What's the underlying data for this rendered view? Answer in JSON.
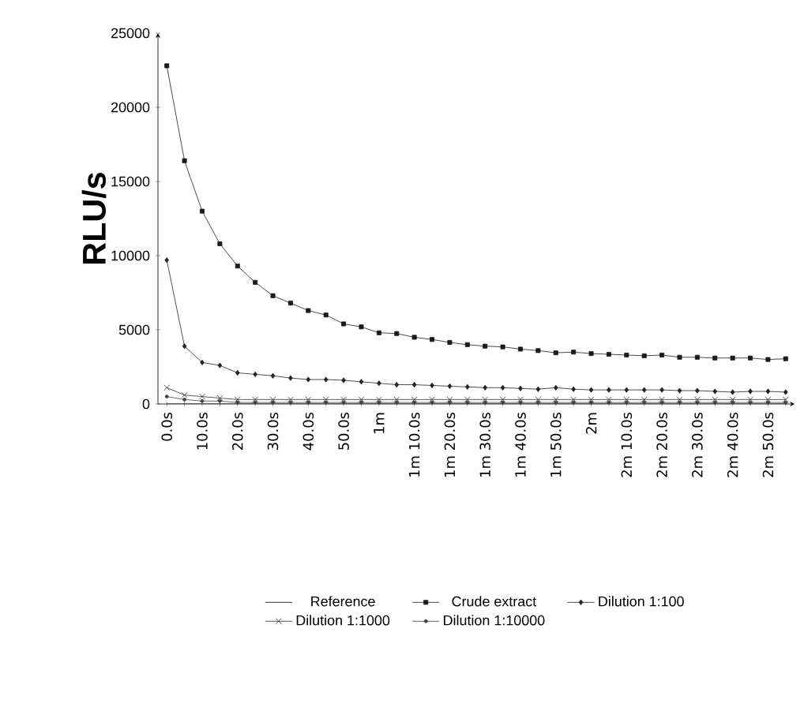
{
  "chart_data": {
    "type": "line",
    "ylabel": "RLU/s",
    "categories": [
      "0.0s",
      null,
      "10.0s",
      null,
      "20.0s",
      null,
      "30.0s",
      null,
      "40.0s",
      null,
      "50.0s",
      null,
      "1m",
      null,
      "1m 10.0s",
      null,
      "1m 20.0s",
      null,
      "1m 30.0s",
      null,
      "1m 40.0s",
      null,
      "1m 50.0s",
      null,
      "2m",
      null,
      "2m 10.0s",
      null,
      "2m 20.0s",
      null,
      "2m 30.0s",
      null,
      "2m 40.0s",
      null,
      "2m 50.0s",
      null
    ],
    "ylim": [
      0,
      25000
    ],
    "yticks": [
      0,
      5000,
      10000,
      15000,
      20000,
      25000
    ],
    "legend": "bottom",
    "series": [
      {
        "name": "Reference",
        "color": "#000000",
        "marker": "none",
        "values": [
          0,
          0,
          0,
          0,
          0,
          0,
          0,
          0,
          0,
          0,
          0,
          0,
          0,
          0,
          0,
          0,
          0,
          0,
          0,
          0,
          0,
          0,
          0,
          0,
          0,
          0,
          0,
          0,
          0,
          0,
          0,
          0,
          0,
          0,
          0,
          0
        ]
      },
      {
        "name": "Crude extract",
        "color": "#1a1a1a",
        "marker": "square",
        "values": [
          22800,
          16400,
          13000,
          10800,
          9300,
          8200,
          7300,
          6800,
          6300,
          6000,
          5400,
          5200,
          4800,
          4750,
          4500,
          4350,
          4150,
          4000,
          3900,
          3850,
          3700,
          3600,
          3450,
          3500,
          3400,
          3350,
          3300,
          3250,
          3300,
          3150,
          3150,
          3100,
          3100,
          3100,
          3000,
          3050
        ]
      },
      {
        "name": "Dilution 1:100",
        "color": "#222222",
        "marker": "diamond",
        "values": [
          9700,
          3900,
          2800,
          2600,
          2100,
          2000,
          1900,
          1750,
          1650,
          1650,
          1600,
          1500,
          1400,
          1300,
          1300,
          1250,
          1200,
          1150,
          1100,
          1100,
          1050,
          1000,
          1100,
          1000,
          950,
          950,
          950,
          950,
          950,
          900,
          900,
          850,
          800,
          850,
          850,
          800
        ]
      },
      {
        "name": "Dilution 1:1000",
        "color": "#2e2e2e",
        "marker": "cross",
        "values": [
          1100,
          600,
          500,
          400,
          300,
          300,
          300,
          300,
          300,
          300,
          300,
          300,
          300,
          300,
          300,
          300,
          300,
          300,
          300,
          300,
          300,
          300,
          300,
          300,
          300,
          300,
          300,
          300,
          300,
          300,
          300,
          300,
          300,
          300,
          300,
          300
        ]
      },
      {
        "name": "Dilution 1:10000",
        "color": "#404040",
        "marker": "circle",
        "values": [
          500,
          300,
          200,
          200,
          100,
          100,
          100,
          100,
          100,
          100,
          100,
          100,
          100,
          100,
          100,
          100,
          100,
          100,
          100,
          100,
          100,
          100,
          100,
          100,
          100,
          100,
          100,
          100,
          100,
          100,
          100,
          100,
          100,
          100,
          100,
          100
        ]
      }
    ]
  }
}
